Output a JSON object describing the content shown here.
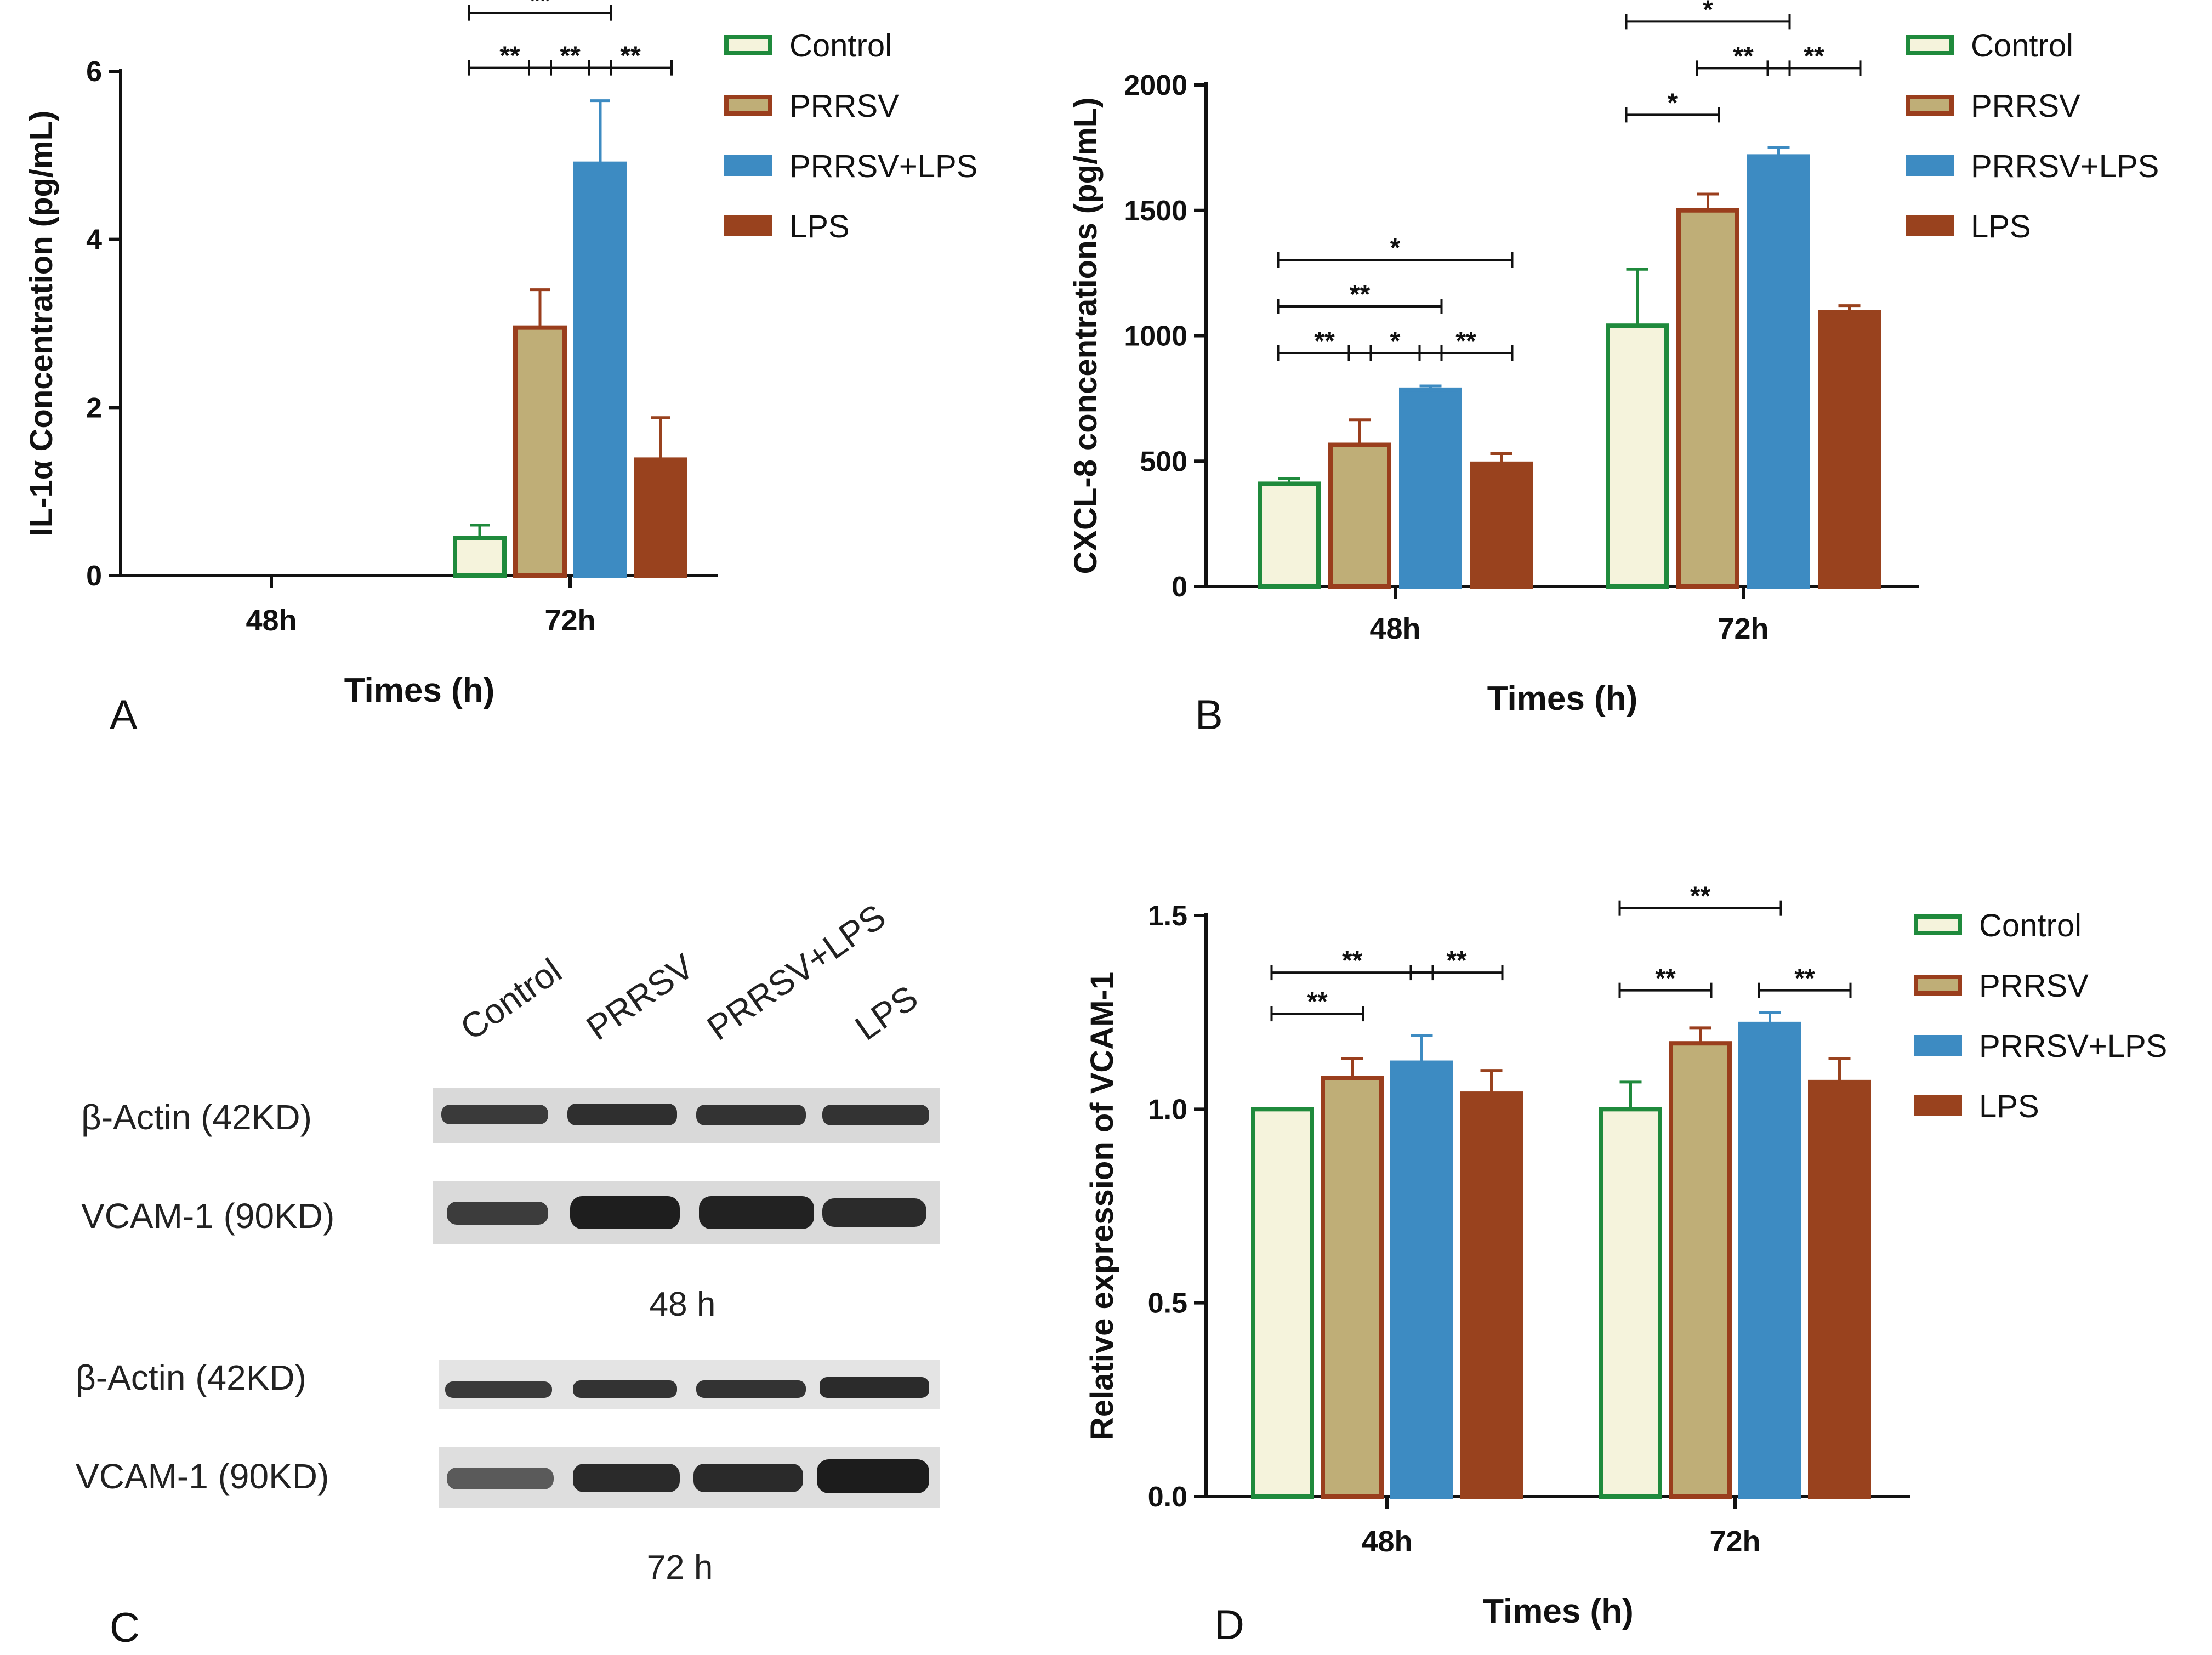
{
  "series_colors": {
    "Control": {
      "fill": "#f5f3dc",
      "stroke": "#1f8a3c"
    },
    "PRRSV": {
      "fill": "#bfae77",
      "stroke": "#9a3e1d"
    },
    "PRRSV+LPS": {
      "fill": "#3d8bc2",
      "stroke": "#3d8bc2"
    },
    "LPS": {
      "fill": "#99421e",
      "stroke": "#99421e"
    }
  },
  "panels": {
    "A": {
      "label": "A"
    },
    "B": {
      "label": "B"
    },
    "C": {
      "label": "C",
      "lane_labels": [
        "Control",
        "PRRSV",
        "PRRSV+LPS",
        "LPS"
      ],
      "blots": [
        {
          "time_label": "48 h",
          "rows": [
            "β-Actin (42KD)",
            "VCAM-1 (90KD)"
          ]
        },
        {
          "time_label": "72 h",
          "rows": [
            "β-Actin (42KD)",
            "VCAM-1 (90KD)"
          ]
        }
      ]
    },
    "D": {
      "label": "D"
    }
  },
  "chart_data": [
    {
      "id": "A",
      "type": "bar",
      "title": "",
      "ylabel": "IL-1α Concentration (pg/mL)",
      "xlabel": "Times (h)",
      "categories": [
        "48h",
        "72h"
      ],
      "ylim": [
        0,
        6
      ],
      "yticks": [
        "0",
        "2",
        "4",
        "6"
      ],
      "series": [
        {
          "name": "Control",
          "values": [
            null,
            0.45
          ],
          "errors": [
            null,
            0.15
          ]
        },
        {
          "name": "PRRSV",
          "values": [
            null,
            2.95
          ],
          "errors": [
            null,
            0.45
          ]
        },
        {
          "name": "PRRSV+LPS",
          "values": [
            null,
            4.9
          ],
          "errors": [
            null,
            0.75
          ]
        },
        {
          "name": "LPS",
          "values": [
            null,
            1.38
          ],
          "errors": [
            null,
            0.5
          ]
        }
      ],
      "legend": [
        "Control",
        "PRRSV",
        "PRRSV+LPS",
        "LPS"
      ],
      "annotations": [
        {
          "cat": 1,
          "from": 0,
          "to": 2,
          "text": "**",
          "level": 2
        },
        {
          "cat": 1,
          "from": 0,
          "to": 1,
          "text": "**",
          "level": 1
        },
        {
          "cat": 1,
          "from": 1,
          "to": 2,
          "text": "**",
          "level": 1
        },
        {
          "cat": 1,
          "from": 2,
          "to": 3,
          "text": "**",
          "level": 1
        }
      ]
    },
    {
      "id": "B",
      "type": "bar",
      "title": "",
      "ylabel": "CXCL-8 concentrations (pg/mL)",
      "xlabel": "Times (h)",
      "categories": [
        "48h",
        "72h"
      ],
      "ylim": [
        0,
        2000
      ],
      "yticks": [
        "0",
        "500",
        "1000",
        "1500",
        "2000"
      ],
      "series": [
        {
          "name": "Control",
          "values": [
            410,
            1040
          ],
          "errors": [
            20,
            225
          ]
        },
        {
          "name": "PRRSV",
          "values": [
            565,
            1500
          ],
          "errors": [
            100,
            65
          ]
        },
        {
          "name": "PRRSV+LPS",
          "values": [
            785,
            1715
          ],
          "errors": [
            15,
            35
          ]
        },
        {
          "name": "LPS",
          "values": [
            490,
            1095
          ],
          "errors": [
            40,
            25
          ]
        }
      ],
      "legend": [
        "Control",
        "PRRSV",
        "PRRSV+LPS",
        "LPS"
      ],
      "annotations": [
        {
          "cat": 0,
          "from": 0,
          "to": 3,
          "text": "*",
          "level": 3
        },
        {
          "cat": 0,
          "from": 0,
          "to": 2,
          "text": "**",
          "level": 2
        },
        {
          "cat": 0,
          "from": 0,
          "to": 1,
          "text": "**",
          "level": 1
        },
        {
          "cat": 0,
          "from": 1,
          "to": 2,
          "text": "*",
          "level": 1
        },
        {
          "cat": 0,
          "from": 2,
          "to": 3,
          "text": "**",
          "level": 1
        },
        {
          "cat": 1,
          "from": 0,
          "to": 2,
          "text": "*",
          "level": 3
        },
        {
          "cat": 1,
          "from": 1,
          "to": 2,
          "text": "**",
          "level": 2
        },
        {
          "cat": 1,
          "from": 2,
          "to": 3,
          "text": "**",
          "level": 2
        },
        {
          "cat": 1,
          "from": 0,
          "to": 1,
          "text": "*",
          "level": 1
        }
      ]
    },
    {
      "id": "D",
      "type": "bar",
      "title": "",
      "ylabel": "Relative expression of VCAM-1",
      "xlabel": "Times (h)",
      "categories": [
        "48h",
        "72h"
      ],
      "ylim": [
        0,
        1.5
      ],
      "yticks": [
        "0.0",
        "0.5",
        "1.0",
        "1.5"
      ],
      "series": [
        {
          "name": "Control",
          "values": [
            1.0,
            1.0
          ],
          "errors": [
            0,
            0.07
          ]
        },
        {
          "name": "PRRSV",
          "values": [
            1.08,
            1.17
          ],
          "errors": [
            0.05,
            0.04
          ]
        },
        {
          "name": "PRRSV+LPS",
          "values": [
            1.12,
            1.22
          ],
          "errors": [
            0.07,
            0.03
          ]
        },
        {
          "name": "LPS",
          "values": [
            1.04,
            1.07
          ],
          "errors": [
            0.06,
            0.06
          ]
        }
      ],
      "legend": [
        "Control",
        "PRRSV",
        "PRRSV+LPS",
        "LPS"
      ],
      "annotations": [
        {
          "cat": 0,
          "from": 0,
          "to": 2,
          "text": "**",
          "level": 2
        },
        {
          "cat": 0,
          "from": 0,
          "to": 1,
          "text": "**",
          "level": 1
        },
        {
          "cat": 0,
          "from": 2,
          "to": 3,
          "text": "**",
          "level": 2
        },
        {
          "cat": 1,
          "from": 0,
          "to": 2,
          "text": "**",
          "level": 3
        },
        {
          "cat": 1,
          "from": 0,
          "to": 1,
          "text": "**",
          "level": 1
        },
        {
          "cat": 1,
          "from": 2,
          "to": 3,
          "text": "**",
          "level": 1
        }
      ]
    }
  ]
}
